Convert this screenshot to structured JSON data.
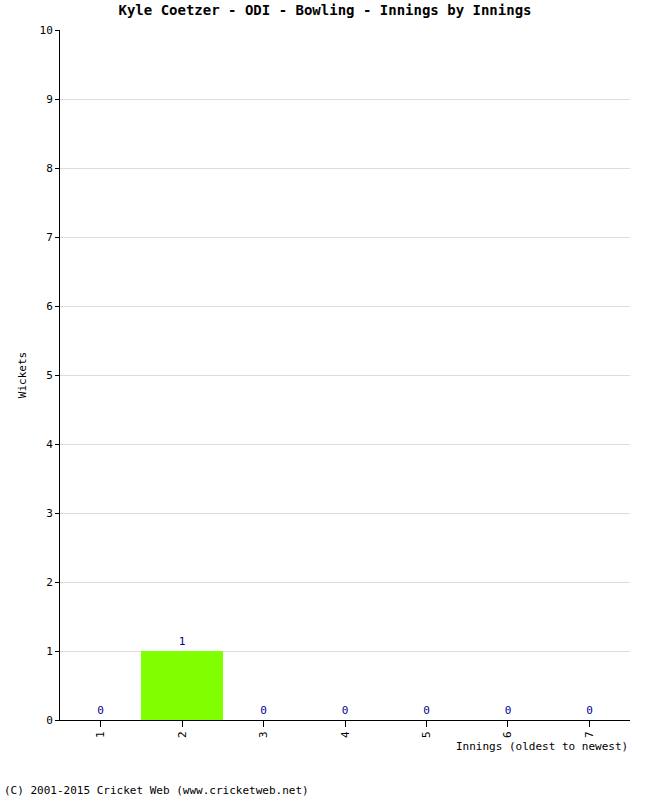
{
  "chart_data": {
    "type": "bar",
    "title": "Kyle Coetzer - ODI - Bowling - Innings by Innings",
    "x_label": "Innings (oldest to newest)",
    "y_label": "Wickets",
    "categories": [
      "1",
      "2",
      "3",
      "4",
      "5",
      "6",
      "7"
    ],
    "values": [
      0,
      1,
      0,
      0,
      0,
      0,
      0
    ],
    "color": "#7fff00",
    "ylim": [
      0,
      10
    ],
    "yticks": [
      0,
      1,
      2,
      3,
      4,
      5,
      6,
      7,
      8,
      9,
      10
    ],
    "grid": true,
    "data_labels": true,
    "annotations": [
      "(C) 2001-2015 Cricket Web (www.cricketweb.net)"
    ]
  }
}
